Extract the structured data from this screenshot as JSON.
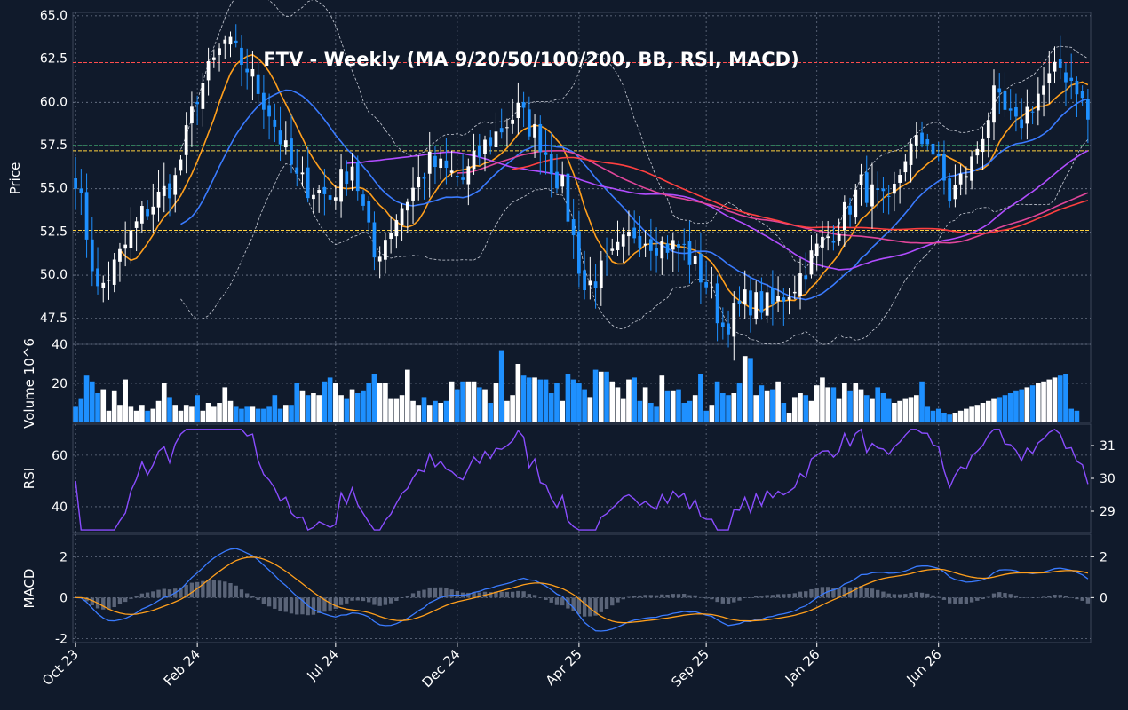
{
  "chart_data": {
    "type": "candlestick",
    "title": "FTV  -  Weekly  (MA 9/20/50/100/200, BB, RSI, MACD)",
    "theme": {
      "background": "#101a2b",
      "grid": "#8c96aa",
      "up": "#ffffff",
      "down": "#1e90ff",
      "text": "#ffffff"
    },
    "x_ticks": [
      "Oct 23",
      "Feb 24",
      "Jul 24",
      "Dec 24",
      "Apr 25",
      "Sep 25",
      "Jan 26",
      "Jun 26"
    ],
    "price_panel": {
      "ylabel": "Price",
      "ylim": [
        46.0,
        65.2
      ],
      "yticks": [
        "47.5",
        "50.0",
        "52.5",
        "55.0",
        "57.5",
        "60.0",
        "62.5",
        "65.0"
      ],
      "hlines": [
        {
          "value": 62.3,
          "color": "#ff4d4d"
        },
        {
          "value": 57.5,
          "color": "#52e08a"
        },
        {
          "value": 57.2,
          "color": "#ffd23f"
        },
        {
          "value": 52.6,
          "color": "#ffd23f"
        }
      ],
      "close_anchors": [
        [
          0,
          55.8
        ],
        [
          4,
          49.0
        ],
        [
          7,
          50.5
        ],
        [
          12,
          53.5
        ],
        [
          18,
          55.5
        ],
        [
          22,
          60.5
        ],
        [
          27,
          63.5
        ],
        [
          31,
          62.0
        ],
        [
          35,
          59.5
        ],
        [
          40,
          55.5
        ],
        [
          46,
          54.5
        ],
        [
          50,
          56.5
        ],
        [
          54,
          51.0
        ],
        [
          59,
          54.0
        ],
        [
          64,
          56.5
        ],
        [
          70,
          55.5
        ],
        [
          74,
          57.5
        ],
        [
          80,
          59.5
        ],
        [
          84,
          57.8
        ],
        [
          88,
          55.0
        ],
        [
          92,
          49.2
        ],
        [
          96,
          50.5
        ],
        [
          101,
          52.5
        ],
        [
          106,
          51.8
        ],
        [
          110,
          51.5
        ],
        [
          114,
          49.5
        ],
        [
          117,
          47.0
        ],
        [
          121,
          48.5
        ],
        [
          126,
          48.2
        ],
        [
          130,
          49.5
        ],
        [
          134,
          51.5
        ],
        [
          138,
          53.0
        ],
        [
          142,
          55.2
        ],
        [
          147,
          53.8
        ],
        [
          150,
          57.0
        ],
        [
          154,
          58.0
        ],
        [
          158,
          54.5
        ],
        [
          162,
          56.5
        ],
        [
          166,
          60.2
        ],
        [
          170,
          58.5
        ],
        [
          174,
          60.5
        ],
        [
          178,
          62.0
        ],
        [
          181,
          61.0
        ],
        [
          183,
          59.0
        ]
      ],
      "moving_averages": [
        {
          "period": 9,
          "color": "#ff9f1c"
        },
        {
          "period": 20,
          "color": "#3a7bff"
        },
        {
          "period": 50,
          "color": "#b14dff"
        },
        {
          "period": 100,
          "color": "#e0469a"
        },
        {
          "period": 200,
          "color": "#ff4040"
        }
      ],
      "bollinger": {
        "period": 20,
        "stdev": 2,
        "color": "#c8ccd6"
      }
    },
    "volume_panel": {
      "ylabel": "Volume  10^6",
      "ylim": [
        0,
        40
      ],
      "yticks": [
        "20",
        "40"
      ],
      "values": [
        8,
        12,
        24,
        21,
        15,
        17,
        6,
        16,
        9,
        22,
        8,
        6,
        9,
        6,
        7,
        11,
        20,
        13,
        9,
        6,
        9,
        8,
        14,
        6,
        10,
        8,
        10,
        18,
        11,
        8,
        7,
        8,
        8,
        7,
        7,
        8,
        14,
        7,
        9,
        9,
        20,
        16,
        14,
        15,
        14,
        21,
        23,
        20,
        14,
        12,
        17,
        15,
        16,
        20,
        25,
        20,
        20,
        12,
        12,
        14,
        27,
        11,
        9,
        13,
        9,
        11,
        10,
        11,
        21,
        17,
        21,
        21,
        21,
        18,
        17,
        10,
        20,
        37,
        11,
        14,
        30,
        24,
        23,
        23,
        22,
        22,
        15,
        20,
        11,
        25,
        22,
        20,
        17,
        13,
        27,
        26,
        26,
        21,
        18,
        12,
        22,
        23,
        11,
        18,
        10,
        8,
        24,
        16,
        16,
        17,
        10,
        11,
        14,
        25,
        6,
        9,
        21,
        15,
        14,
        15,
        20,
        34,
        33,
        14,
        19,
        16,
        17,
        21,
        10,
        5,
        13,
        15,
        14,
        11,
        19,
        23,
        18,
        18,
        12,
        20,
        16,
        20,
        17,
        14,
        12,
        18,
        15,
        12,
        10,
        11,
        12,
        13,
        14,
        21,
        8,
        6,
        7,
        5,
        4,
        5,
        6,
        7,
        8,
        9,
        10,
        11,
        12,
        13,
        14,
        15,
        16,
        17,
        18,
        19,
        20,
        21,
        22,
        23,
        24,
        25,
        7,
        6
      ]
    },
    "rsi_panel": {
      "ylabel": "RSI",
      "ylim": [
        30,
        72
      ],
      "yticks": [
        "40",
        "60"
      ],
      "right_ticks": [
        "29",
        "30",
        "31"
      ],
      "color": "#8a4dff"
    },
    "macd_panel": {
      "ylabel": "MACD",
      "ylim": [
        -2.2,
        3.1
      ],
      "yticks": [
        "-2",
        "0",
        "2"
      ],
      "right_ticks": [
        "0",
        "2"
      ],
      "macd_color": "#3a7bff",
      "signal_color": "#ff9f1c",
      "hist_color": "#5a6478"
    }
  }
}
